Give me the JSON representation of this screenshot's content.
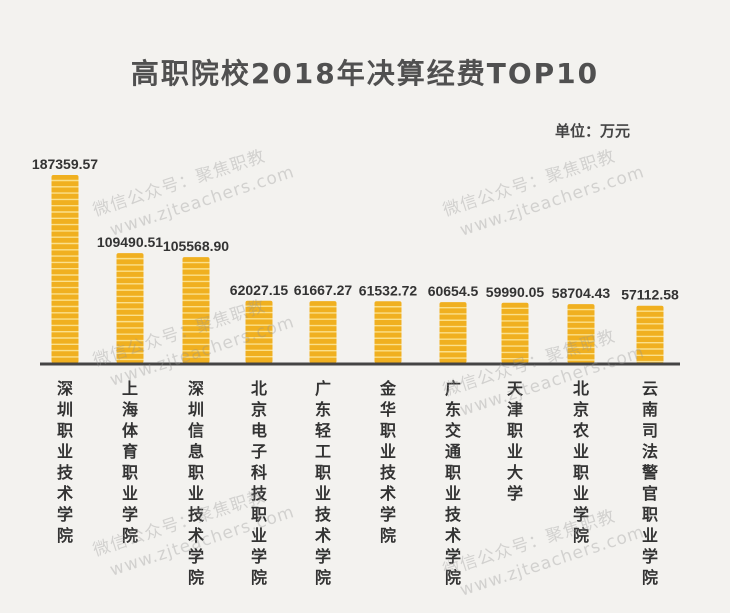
{
  "chart_data": {
    "type": "bar",
    "title": "高职院校2018年决算经费TOP10",
    "unit_label": "单位：万元",
    "categories": [
      "深圳职业技术学院",
      "上海体育职业学院",
      "深圳信息职业技术学院",
      "北京电子科技职业学院",
      "广东轻工职业技术学院",
      "金华职业技术学院",
      "广东交通职业技术学院",
      "天津职业大学",
      "北京农业职业学院",
      "云南司法警官职业学院"
    ],
    "values": [
      187359.57,
      109490.51,
      105568.9,
      62027.15,
      61667.27,
      61532.72,
      60654.5,
      59990.05,
      58704.43,
      57112.58
    ],
    "value_labels": [
      "187359.57",
      "109490.51",
      "105568.90",
      "62027.15",
      "61667.27",
      "61532.72",
      "60654.5",
      "59990.05",
      "58704.43",
      "57112.58"
    ],
    "bar_color": "#f0b020",
    "stripe_color": "#fbe08a",
    "axis_color": "#444444",
    "grid": false
  },
  "watermark": {
    "line1": "微信公众号：聚焦职教",
    "line2": "www.zjteachers.com"
  }
}
